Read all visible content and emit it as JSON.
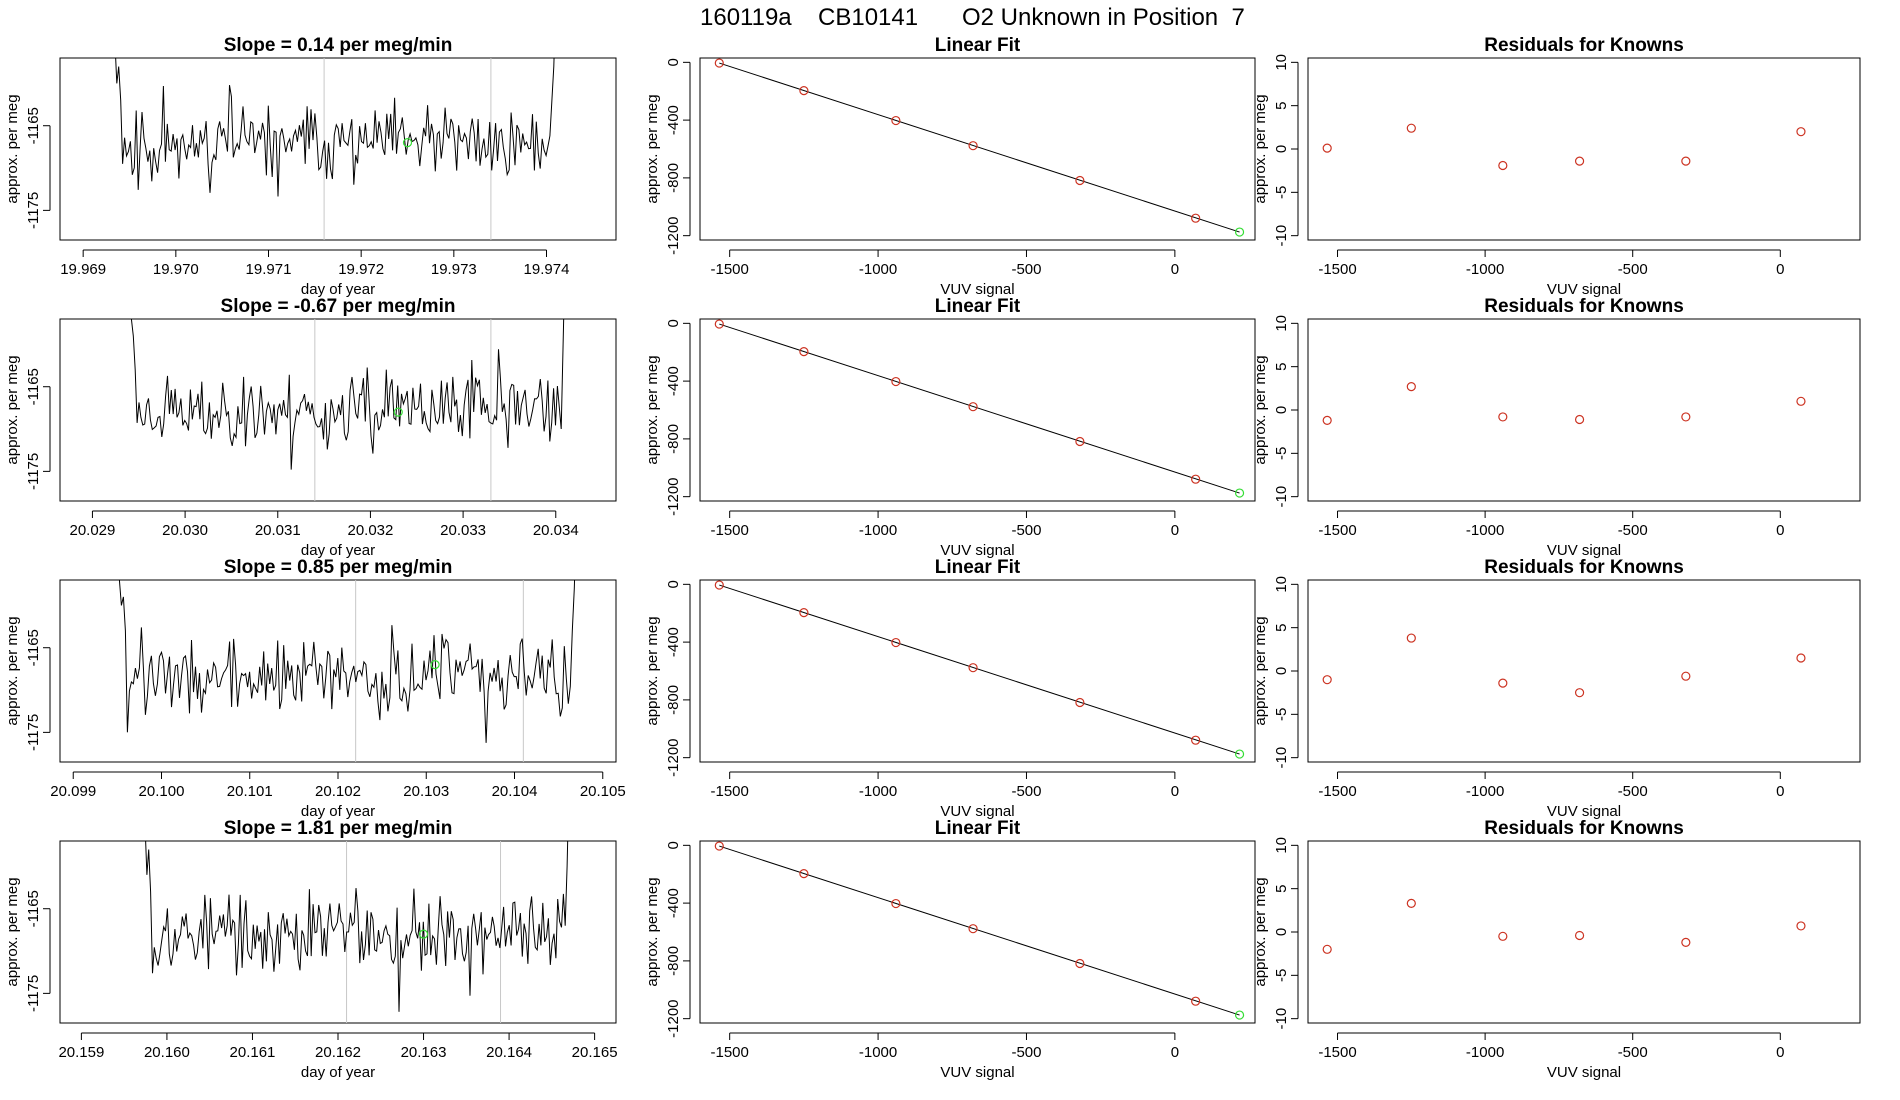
{
  "header": {
    "run_id": "160119a",
    "cylinder": "CB10141",
    "description": "O2 Unknown in Position  7"
  },
  "colors": {
    "trace": "#000000",
    "window_lines": "#c8c8c8",
    "unknown_point": "#33dd33",
    "known_points": "#cc3322"
  },
  "chart_data": [
    {
      "type": "line",
      "title": "Slope =  0.14  per meg/min",
      "xlabel": "day of year",
      "ylabel": "approx. per meg",
      "xlim": [
        19.96875,
        19.97475
      ],
      "ylim": [
        -1178.5,
        -1157
      ],
      "xticks": [
        "19.969",
        "19.970",
        "19.971",
        "19.972",
        "19.973",
        "19.974"
      ],
      "yticks": [
        "-1165",
        "-1175"
      ],
      "window_lines": [
        19.9716,
        19.9734
      ],
      "unknown_point": {
        "x": 19.9725,
        "y": -1167.0
      },
      "trace": {
        "x_start": 19.9693,
        "x_end": 19.9741,
        "center": -1167.0,
        "amp": 1.8,
        "seed": 11,
        "head": [
          -1150,
          -1157,
          -1155,
          -1160,
          -1158,
          -1162
        ],
        "tail": [
          -1162,
          -1158,
          -1150
        ]
      }
    },
    {
      "type": "line",
      "title": "Linear Fit",
      "xlabel": "VUV signal",
      "ylabel": "approx. per meg",
      "xlim": [
        -1600,
        270
      ],
      "ylim": [
        -1230,
        30
      ],
      "xticks": [
        "-1500",
        "-1000",
        "-500",
        "0"
      ],
      "yticks": [
        "0",
        "-400",
        "-800",
        "-1200"
      ],
      "fit_line": {
        "x": [
          -1535,
          218
        ],
        "y": [
          -5,
          -1175
        ]
      },
      "knowns": {
        "x": [
          -1535,
          -1250,
          -940,
          -680,
          -320,
          70
        ],
        "y": [
          -5,
          -196,
          -403,
          -577,
          -818,
          -1079
        ]
      },
      "unknown_point": {
        "x": 218,
        "y": -1175
      }
    },
    {
      "type": "scatter",
      "title": "Residuals for Knowns",
      "xlabel": "VUV signal",
      "ylabel": "approx. per meg",
      "xlim": [
        -1600,
        270
      ],
      "ylim": [
        -10.5,
        10.5
      ],
      "xticks": [
        "-1500",
        "-1000",
        "-500",
        "0"
      ],
      "yticks": [
        "-10",
        "-5",
        "0",
        "5",
        "10"
      ],
      "x": [
        -1535,
        -1250,
        -940,
        -680,
        -320,
        70
      ],
      "y": [
        0.1,
        2.4,
        -1.9,
        -1.4,
        -1.4,
        2.0
      ]
    },
    {
      "type": "line",
      "title": "Slope =  -0.67  per meg/min",
      "xlabel": "day of year",
      "ylabel": "approx. per meg",
      "xlim": [
        20.02865,
        20.03465
      ],
      "ylim": [
        -1178.5,
        -1157
      ],
      "xticks": [
        "20.029",
        "20.030",
        "20.031",
        "20.032",
        "20.033",
        "20.034"
      ],
      "yticks": [
        "-1165",
        "-1175"
      ],
      "window_lines": [
        20.0314,
        20.0333
      ],
      "unknown_point": {
        "x": 20.0323,
        "y": -1168.0
      },
      "trace": {
        "x_start": 20.0294,
        "x_end": 20.0341,
        "center": -1168.0,
        "amp": 1.8,
        "seed": 23,
        "head": [
          -1150,
          -1157,
          -1159,
          -1163
        ],
        "tail": [
          -1170,
          -1160,
          -1150
        ]
      }
    },
    {
      "type": "line",
      "title": "Linear Fit",
      "xlabel": "VUV signal",
      "ylabel": "approx. per meg",
      "xlim": [
        -1600,
        270
      ],
      "ylim": [
        -1230,
        30
      ],
      "xticks": [
        "-1500",
        "-1000",
        "-500",
        "0"
      ],
      "yticks": [
        "0",
        "-400",
        "-800",
        "-1200"
      ],
      "fit_line": {
        "x": [
          -1535,
          218
        ],
        "y": [
          -5,
          -1175
        ]
      },
      "knowns": {
        "x": [
          -1535,
          -1250,
          -940,
          -680,
          -320,
          70
        ],
        "y": [
          -5,
          -196,
          -403,
          -577,
          -818,
          -1079
        ]
      },
      "unknown_point": {
        "x": 218,
        "y": -1175
      }
    },
    {
      "type": "scatter",
      "title": "Residuals for Knowns",
      "xlabel": "VUV signal",
      "ylabel": "approx. per meg",
      "xlim": [
        -1600,
        270
      ],
      "ylim": [
        -10.5,
        10.5
      ],
      "xticks": [
        "-1500",
        "-1000",
        "-500",
        "0"
      ],
      "yticks": [
        "-10",
        "-5",
        "0",
        "5",
        "10"
      ],
      "x": [
        -1535,
        -1250,
        -940,
        -680,
        -320,
        70
      ],
      "y": [
        -1.2,
        2.7,
        -0.8,
        -1.1,
        -0.8,
        1.0
      ]
    },
    {
      "type": "line",
      "title": "Slope =  0.85  per meg/min",
      "xlabel": "day of year",
      "ylabel": "approx. per meg",
      "xlim": [
        20.09885,
        20.10515
      ],
      "ylim": [
        -1178.5,
        -1157
      ],
      "xticks": [
        "20.099",
        "20.100",
        "20.101",
        "20.102",
        "20.103",
        "20.104",
        "20.105"
      ],
      "yticks": [
        "-1165",
        "-1175"
      ],
      "window_lines": [
        20.1022,
        20.1041
      ],
      "unknown_point": {
        "x": 20.1031,
        "y": -1167.0
      },
      "trace": {
        "x_start": 20.0995,
        "x_end": 20.1047,
        "center": -1168.5,
        "amp": 1.9,
        "seed": 37,
        "head": [
          -1150,
          -1157,
          -1160,
          -1159,
          -1163
        ],
        "tail": [
          -1163,
          -1158,
          -1150
        ]
      }
    },
    {
      "type": "line",
      "title": "Linear Fit",
      "xlabel": "VUV signal",
      "ylabel": "approx. per meg",
      "xlim": [
        -1600,
        270
      ],
      "ylim": [
        -1230,
        30
      ],
      "xticks": [
        "-1500",
        "-1000",
        "-500",
        "0"
      ],
      "yticks": [
        "0",
        "-400",
        "-800",
        "-1200"
      ],
      "fit_line": {
        "x": [
          -1535,
          218
        ],
        "y": [
          -5,
          -1175
        ]
      },
      "knowns": {
        "x": [
          -1535,
          -1250,
          -940,
          -680,
          -320,
          70
        ],
        "y": [
          -5,
          -196,
          -403,
          -577,
          -818,
          -1079
        ]
      },
      "unknown_point": {
        "x": 218,
        "y": -1175
      }
    },
    {
      "type": "scatter",
      "title": "Residuals for Knowns",
      "xlabel": "VUV signal",
      "ylabel": "approx. per meg",
      "xlim": [
        -1600,
        270
      ],
      "ylim": [
        -10.5,
        10.5
      ],
      "xticks": [
        "-1500",
        "-1000",
        "-500",
        "0"
      ],
      "yticks": [
        "-10",
        "-5",
        "0",
        "5",
        "10"
      ],
      "x": [
        -1535,
        -1250,
        -940,
        -680,
        -320,
        70
      ],
      "y": [
        -1.0,
        3.8,
        -1.4,
        -2.5,
        -0.6,
        1.5
      ]
    },
    {
      "type": "line",
      "title": "Slope =  1.81  per meg/min",
      "xlabel": "day of year",
      "ylabel": "approx. per meg",
      "xlim": [
        20.15875,
        20.16525
      ],
      "ylim": [
        -1178.5,
        -1157
      ],
      "xticks": [
        "20.159",
        "20.160",
        "20.161",
        "20.162",
        "20.163",
        "20.164",
        "20.165"
      ],
      "yticks": [
        "-1165",
        "-1175"
      ],
      "window_lines": [
        20.1621,
        20.1639
      ],
      "unknown_point": {
        "x": 20.163,
        "y": -1168.0
      },
      "trace": {
        "x_start": 20.1597,
        "x_end": 20.1647,
        "center": -1168.0,
        "amp": 2.0,
        "seed": 53,
        "head": [
          -1150,
          -1157,
          -1155,
          -1161,
          -1158,
          -1163
        ],
        "tail": [
          -1167,
          -1160,
          -1150
        ]
      }
    },
    {
      "type": "line",
      "title": "Linear Fit",
      "xlabel": "VUV signal",
      "ylabel": "approx. per meg",
      "xlim": [
        -1600,
        270
      ],
      "ylim": [
        -1230,
        30
      ],
      "xticks": [
        "-1500",
        "-1000",
        "-500",
        "0"
      ],
      "yticks": [
        "0",
        "-400",
        "-800",
        "-1200"
      ],
      "fit_line": {
        "x": [
          -1535,
          218
        ],
        "y": [
          -5,
          -1175
        ]
      },
      "knowns": {
        "x": [
          -1535,
          -1250,
          -940,
          -680,
          -320,
          70
        ],
        "y": [
          -5,
          -196,
          -403,
          -577,
          -818,
          -1079
        ]
      },
      "unknown_point": {
        "x": 218,
        "y": -1175
      }
    },
    {
      "type": "scatter",
      "title": "Residuals for Knowns",
      "xlabel": "VUV signal",
      "ylabel": "approx. per meg",
      "xlim": [
        -1600,
        270
      ],
      "ylim": [
        -10.5,
        10.5
      ],
      "xticks": [
        "-1500",
        "-1000",
        "-500",
        "0"
      ],
      "yticks": [
        "-10",
        "-5",
        "0",
        "5",
        "10"
      ],
      "x": [
        -1535,
        -1250,
        -940,
        -680,
        -320,
        70
      ],
      "y": [
        -2.0,
        3.3,
        -0.5,
        -0.4,
        -1.2,
        0.7
      ]
    }
  ]
}
